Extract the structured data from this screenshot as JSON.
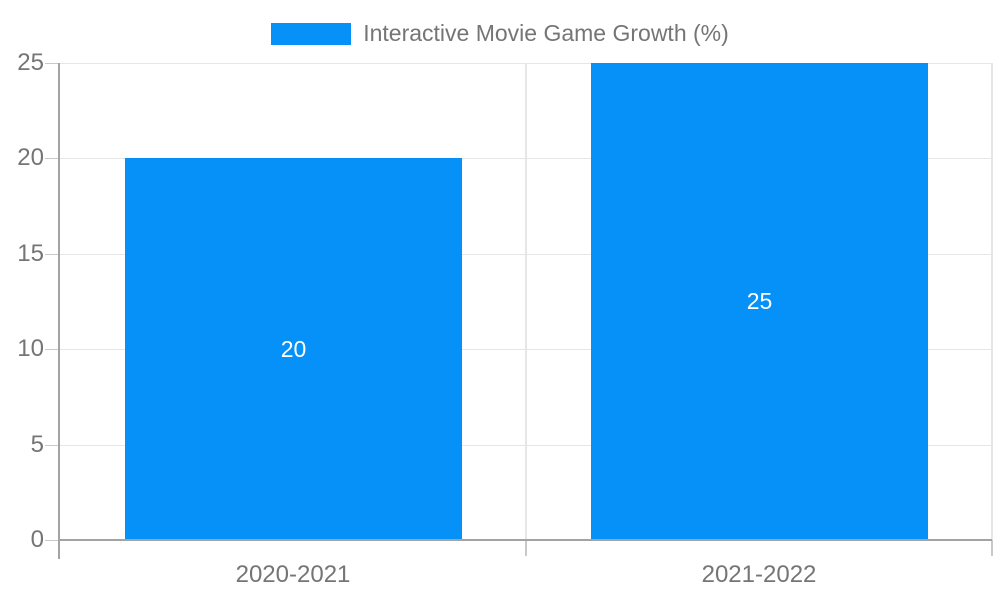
{
  "legend": {
    "label": "Interactive Movie Game Growth (%)"
  },
  "chart_data": {
    "type": "bar",
    "title": "Interactive Movie Game Growth (%)",
    "series": [
      {
        "name": "Interactive Movie Game Growth (%)",
        "values": [
          20,
          25
        ]
      }
    ],
    "categories": [
      "2020-2021",
      "2021-2022"
    ],
    "values": [
      20,
      25
    ],
    "value_labels": [
      "20",
      "25"
    ],
    "xlabel": "",
    "ylabel": "",
    "ylim": [
      0,
      25
    ],
    "yticks": [
      0,
      5,
      10,
      15,
      20,
      25
    ],
    "grid": true,
    "legend_position": "top",
    "colors": {
      "bar": "#0691F8",
      "grid": "#e6e6e6",
      "divider": "#e6e6e6",
      "axis": "#a3a3a3",
      "tick": "#c9c9c9",
      "label": "#757575",
      "value_label": "#ffffff",
      "background": "#ffffff"
    }
  }
}
